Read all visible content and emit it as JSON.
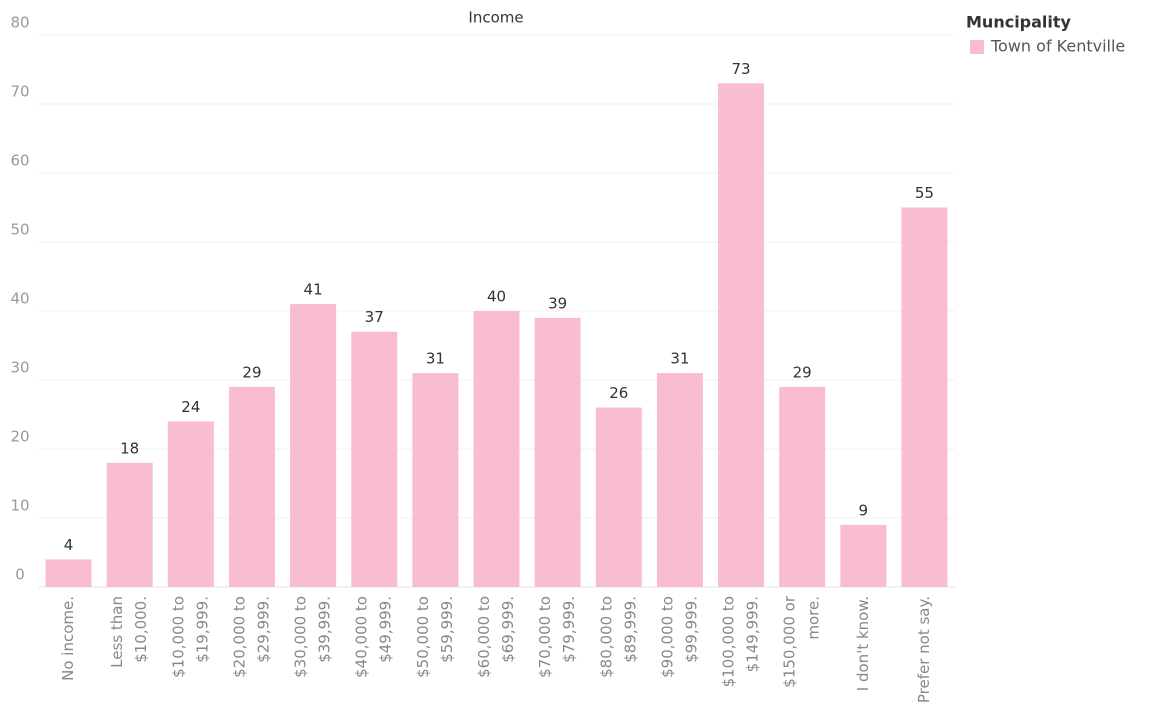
{
  "chart_data": {
    "type": "bar",
    "title": "Income",
    "categories": [
      [
        "No income."
      ],
      [
        "Less than",
        "$10,000."
      ],
      [
        "$10,000 to",
        "$19,999."
      ],
      [
        "$20,000 to",
        "$29,999."
      ],
      [
        "$30,000 to",
        "$39,999."
      ],
      [
        "$40,000 to",
        "$49,999."
      ],
      [
        "$50,000 to",
        "$59,999."
      ],
      [
        "$60,000 to",
        "$69,999."
      ],
      [
        "$70,000 to",
        "$79,999."
      ],
      [
        "$80,000 to",
        "$89,999."
      ],
      [
        "$90,000 to",
        "$99,999."
      ],
      [
        "$100,000 to",
        "$149,999."
      ],
      [
        "$150,000 or",
        "more."
      ],
      [
        "I don't know."
      ],
      [
        "Prefer not say."
      ]
    ],
    "legend_title": "Muncipality",
    "series": [
      {
        "name": "Town of Kentville",
        "color": "#f9bdd3",
        "values": [
          4,
          18,
          24,
          29,
          41,
          37,
          31,
          40,
          39,
          26,
          31,
          73,
          29,
          9,
          55
        ]
      }
    ],
    "ylim": [
      0,
      80
    ],
    "yticks": [
      0,
      10,
      20,
      30,
      40,
      50,
      60,
      70,
      80
    ],
    "grid": true,
    "legend": "top-right"
  }
}
